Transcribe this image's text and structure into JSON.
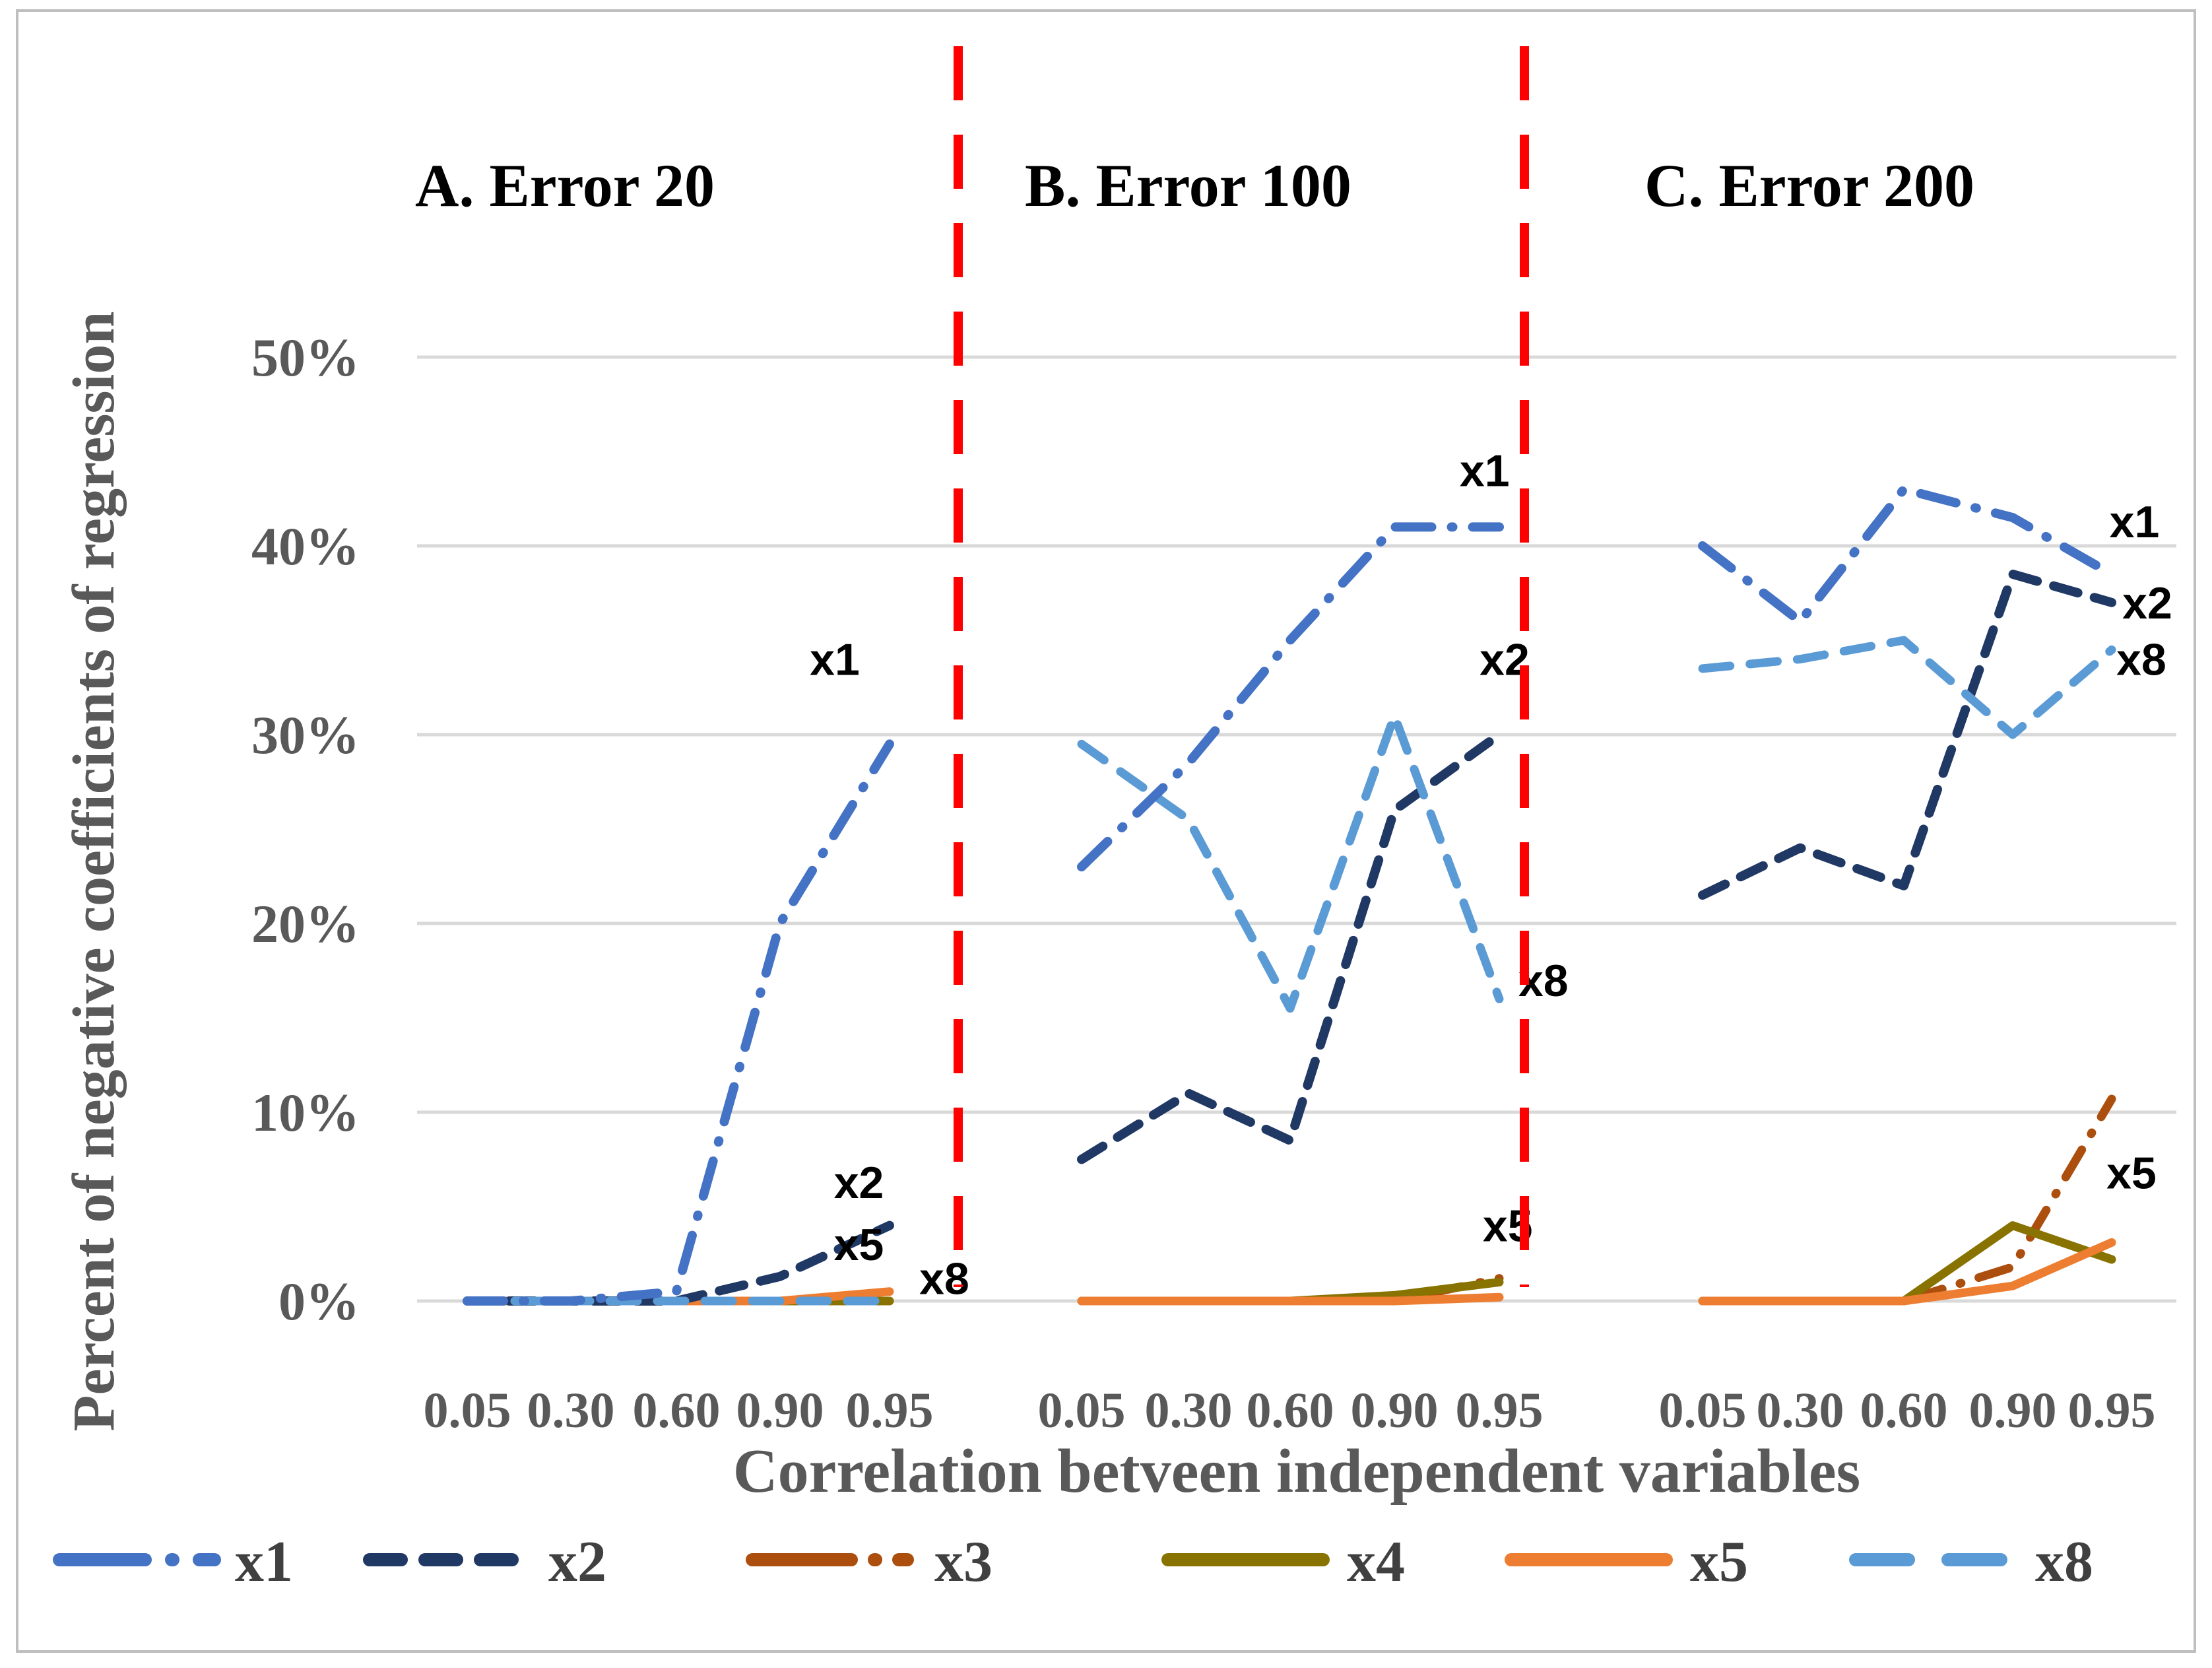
{
  "figure": {
    "background": "#FFFFFF",
    "border_color": "#BFBFBF",
    "text_color": "#595959",
    "annotation_color": "#000000",
    "gridline_color": "#D9D9D9",
    "panel_divider_color": "#FF0000"
  },
  "chart_data": {
    "type": "line",
    "x_categories": [
      "0.05",
      "0.30",
      "0.60",
      "0.90",
      "0.95"
    ],
    "xlabel": "Correlation betveen independent variables",
    "ylabel": "Percent of negative coefficients of regression",
    "y_ticks": [
      {
        "label": "50%",
        "value": 50
      },
      {
        "label": "40%",
        "value": 40
      },
      {
        "label": "30%",
        "value": 30
      },
      {
        "label": "20%",
        "value": 20
      },
      {
        "label": "10%",
        "value": 10
      },
      {
        "label": "0%",
        "value": 0
      }
    ],
    "ylim": [
      0,
      52
    ],
    "grid": true,
    "legend_position": "bottom",
    "panels": [
      {
        "title": "A. Error 20",
        "series": [
          {
            "name": "x1",
            "values": [
              0,
              0,
              0.5,
              20,
              29.5
            ]
          },
          {
            "name": "x2",
            "values": [
              0,
              0,
              0,
              1.3,
              4
            ]
          },
          {
            "name": "x3",
            "values": [
              0,
              0,
              0,
              0,
              0
            ]
          },
          {
            "name": "x4",
            "values": [
              0,
              0,
              0,
              0,
              0
            ]
          },
          {
            "name": "x5",
            "values": [
              0,
              0,
              0,
              0,
              0.5
            ]
          },
          {
            "name": "x8",
            "values": [
              0,
              0,
              0,
              0,
              0
            ]
          }
        ],
        "annotations": [
          {
            "text": "x1",
            "x": 3.5,
            "y": 34
          },
          {
            "text": "x2",
            "x": 3.72,
            "y": 6.3
          },
          {
            "text": "x5",
            "x": 3.72,
            "y": 3.0
          },
          {
            "text": "x8",
            "x": 4.5,
            "y": 1.2
          }
        ]
      },
      {
        "title": "B. Error 100",
        "series": [
          {
            "name": "x1",
            "values": [
              23,
              28.5,
              35,
              41,
              41
            ]
          },
          {
            "name": "x2",
            "values": [
              7.5,
              11,
              8.5,
              26,
              30
            ]
          },
          {
            "name": "x3",
            "values": [
              0,
              0,
              0,
              0,
              1.2
            ]
          },
          {
            "name": "x4",
            "values": [
              0,
              0,
              0,
              0.3,
              1
            ]
          },
          {
            "name": "x5",
            "values": [
              0,
              0,
              0,
              0,
              0.2
            ]
          },
          {
            "name": "x8",
            "values": [
              29.5,
              25.5,
              15.5,
              31,
              16
            ]
          }
        ],
        "annotations": [
          {
            "text": "x1",
            "x": 3.86,
            "y": 44
          },
          {
            "text": "x2",
            "x": 4.05,
            "y": 34
          },
          {
            "text": "x8",
            "x": 4.42,
            "y": 17
          },
          {
            "text": "x5",
            "x": 4.08,
            "y": 4
          }
        ]
      },
      {
        "title": "C. Error 200",
        "series": [
          {
            "name": "x1",
            "values": [
              40,
              36,
              43,
              41.5,
              38.5
            ]
          },
          {
            "name": "x2",
            "values": [
              21.5,
              24,
              22,
              38.5,
              37
            ]
          },
          {
            "name": "x3",
            "values": [
              0,
              0,
              0,
              1.8,
              10.7
            ]
          },
          {
            "name": "x4",
            "values": [
              0,
              0,
              0,
              4,
              2.2
            ]
          },
          {
            "name": "x5",
            "values": [
              0,
              0,
              0,
              0.8,
              3.1
            ]
          },
          {
            "name": "x8",
            "values": [
              33.5,
              34,
              35,
              30,
              34.5
            ]
          }
        ],
        "annotations": [
          {
            "text": "x1",
            "x": 4.23,
            "y": 41.3
          },
          {
            "text": "x2",
            "x": 4.36,
            "y": 37
          },
          {
            "text": "x8",
            "x": 4.3,
            "y": 34
          },
          {
            "text": "x5",
            "x": 4.2,
            "y": 6.8
          }
        ]
      }
    ],
    "legend": {
      "position": "bottom",
      "entries": [
        {
          "name": "x1",
          "color": "#4472C4",
          "dash": "dashdot"
        },
        {
          "name": "x2",
          "color": "#203864",
          "dash": "dashed"
        },
        {
          "name": "x3",
          "color": "#AC4E0E",
          "dash": "dashdot"
        },
        {
          "name": "x4",
          "color": "#887300",
          "dash": "solid"
        },
        {
          "name": "x5",
          "color": "#ED7D31",
          "dash": "solid"
        },
        {
          "name": "x8",
          "color": "#5B9BD5",
          "dash": "dashed"
        }
      ]
    }
  }
}
